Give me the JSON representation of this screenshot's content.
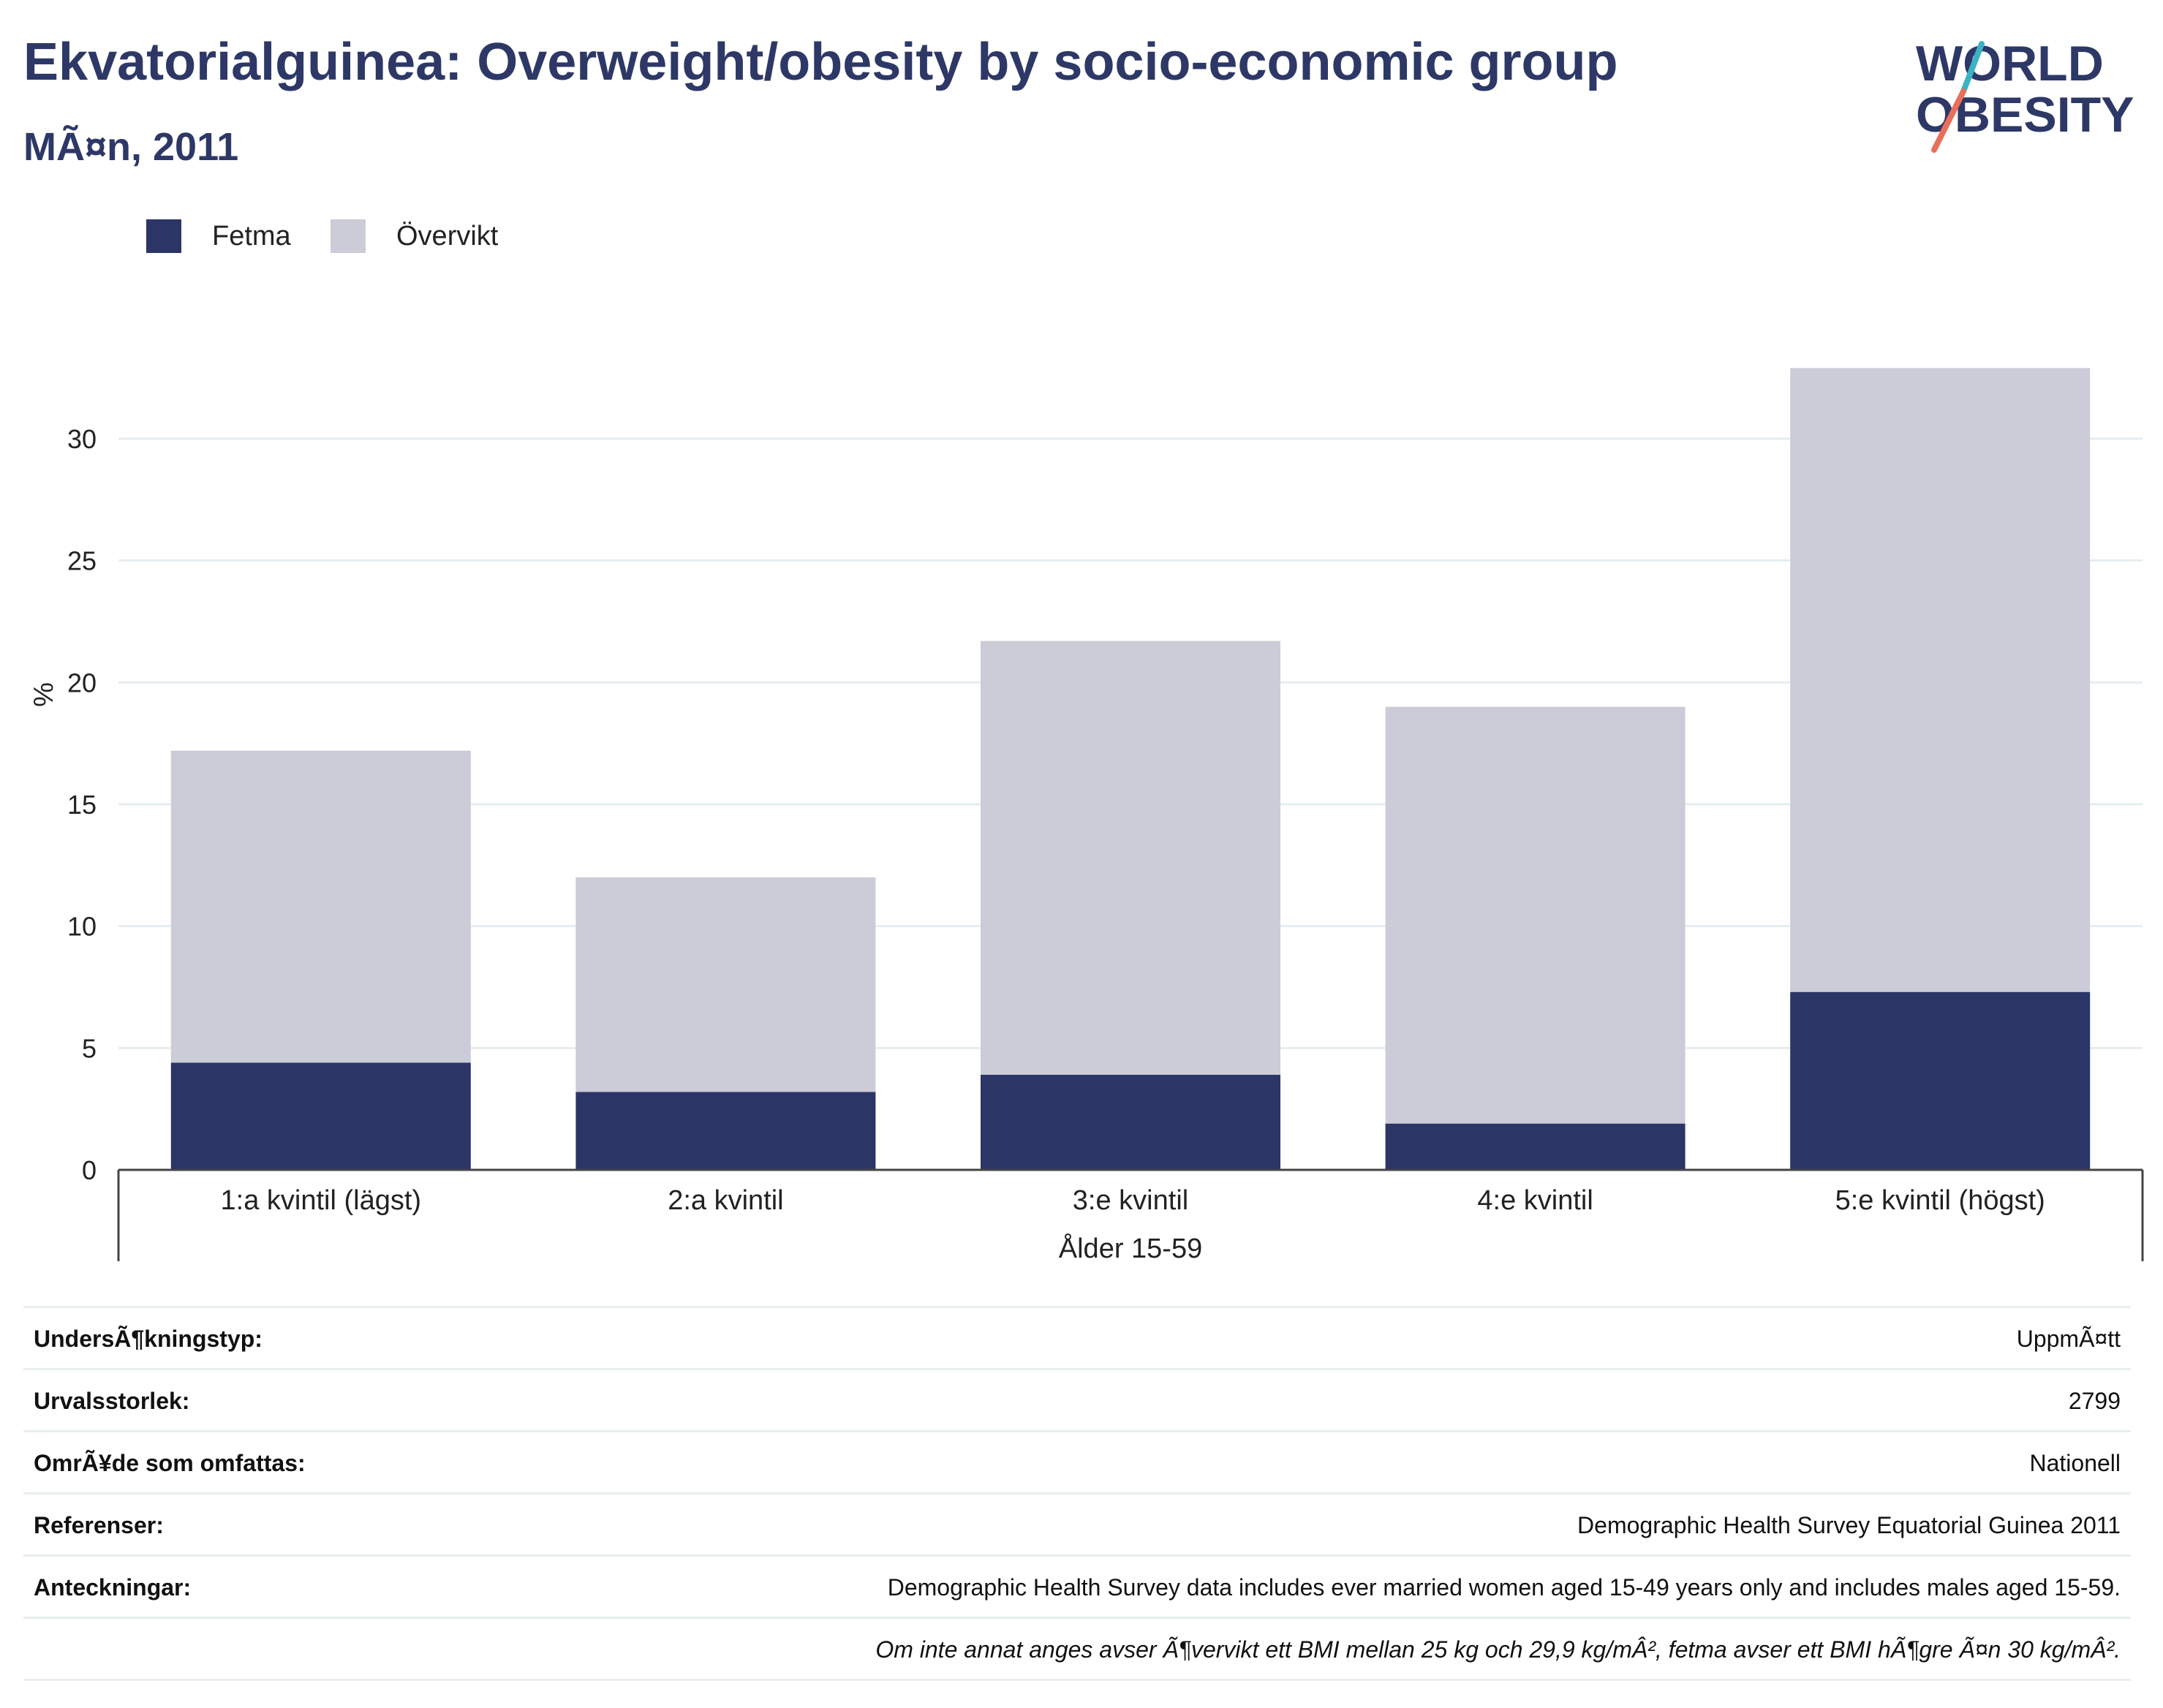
{
  "header": {
    "title": "Ekvatorialguinea: Overweight/obesity by socio-economic group",
    "subtitle": "MÃ¤n, 2011"
  },
  "logo": {
    "line1": "WORLD",
    "line2": "OBESITY",
    "colors": {
      "text": "#2d3867",
      "accent_teal": "#3bb3c3",
      "accent_red": "#e8705a"
    }
  },
  "colors": {
    "fetma": "#2b3566",
    "overvikt": "#cbccd8",
    "gridline": "#e6edf0",
    "axis": "#444444"
  },
  "chart_data": {
    "type": "bar",
    "stacked": true,
    "categories": [
      "1:a kvintil (lägst)",
      "2:a kvintil",
      "3:e kvintil",
      "4:e kvintil",
      "5:e kvintil (högst)"
    ],
    "series": [
      {
        "name": "Fetma",
        "values": [
          4.4,
          3.2,
          3.9,
          1.9,
          7.3
        ]
      },
      {
        "name": "Övervikt",
        "values": [
          12.8,
          8.8,
          17.8,
          17.1,
          25.6
        ]
      }
    ],
    "ylabel": "%",
    "xlabel": "Ålder 15-59",
    "ylim": [
      0,
      33
    ],
    "yticks": [
      0,
      5,
      10,
      15,
      20,
      25,
      30
    ],
    "grid": true,
    "legend": "top-left"
  },
  "info_table": [
    {
      "label": "UndersÃ¶kningstyp:",
      "value": "UppmÃ¤tt"
    },
    {
      "label": "Urvalsstorlek:",
      "value": "2799"
    },
    {
      "label": "OmrÃ¥de som omfattas:",
      "value": "Nationell"
    },
    {
      "label": "Referenser:",
      "value": "Demographic Health Survey Equatorial Guinea 2011"
    },
    {
      "label": "Anteckningar:",
      "value": "Demographic Health Survey data includes ever married women aged 15-49 years only and includes males aged 15-59."
    },
    {
      "label": "",
      "value": "Om inte annat anges avser Ã¶vervikt ett BMI mellan 25 kg och 29,9 kg/mÂ², fetma avser ett BMI hÃ¶gre Ã¤n 30 kg/mÂ²."
    }
  ]
}
